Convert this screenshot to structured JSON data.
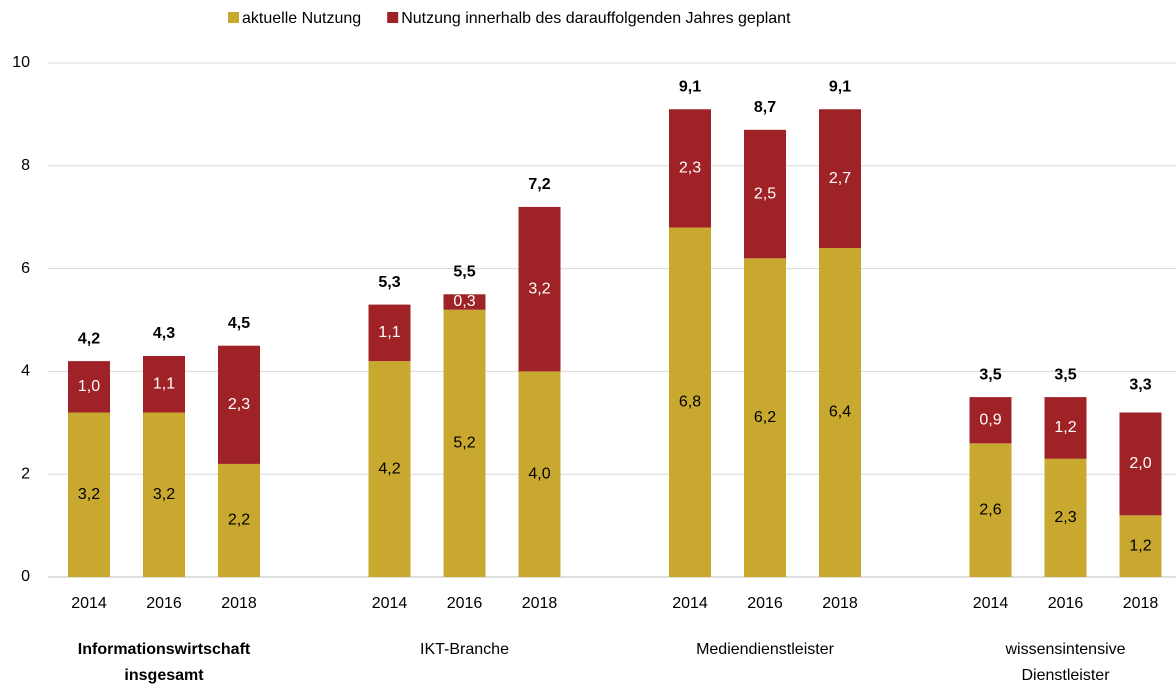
{
  "chart_data": {
    "type": "stacked_bar",
    "groups": [
      {
        "label": [
          "Informationswirtschaft",
          "insgesamt"
        ],
        "bold": true,
        "categories": [
          "2014",
          "2016",
          "2018"
        ]
      },
      {
        "label": [
          "IKT-Branche"
        ],
        "bold": false,
        "categories": [
          "2014",
          "2016",
          "2018"
        ]
      },
      {
        "label": [
          "Mediendienstleister"
        ],
        "bold": false,
        "categories": [
          "2014",
          "2016",
          "2018"
        ]
      },
      {
        "label": [
          "wissensintensive",
          "Dienstleister"
        ],
        "bold": false,
        "categories": [
          "2014",
          "2016",
          "2018"
        ]
      }
    ],
    "series": [
      {
        "name": "aktuelle Nutzung",
        "color": "#c9a82f",
        "label_color": "#000000",
        "values": [
          3.2,
          3.2,
          2.2,
          4.2,
          5.2,
          4.0,
          6.8,
          6.2,
          6.4,
          2.6,
          2.3,
          1.2
        ],
        "value_labels": [
          "3,2",
          "3,2",
          "2,2",
          "4,2",
          "5,2",
          "4,0",
          "6,8",
          "6,2",
          "6,4",
          "2,6",
          "2,3",
          "1,2"
        ]
      },
      {
        "name": "Nutzung innerhalb des darauffolgenden Jahres geplant",
        "color": "#9e2226",
        "label_color": "#ffffff",
        "values": [
          1.0,
          1.1,
          2.3,
          1.1,
          0.3,
          3.2,
          2.3,
          2.5,
          2.7,
          0.9,
          1.2,
          2.0
        ],
        "value_labels": [
          "1,0",
          "1,1",
          "2,3",
          "1,1",
          "0,3",
          "3,2",
          "2,3",
          "2,5",
          "2,7",
          "0,9",
          "1,2",
          "2,0"
        ]
      }
    ],
    "totals": [
      4.2,
      4.3,
      4.5,
      5.3,
      5.5,
      7.2,
      9.1,
      8.7,
      9.1,
      3.5,
      3.5,
      3.3
    ],
    "total_labels": [
      "4,2",
      "4,3",
      "4,5",
      "5,3",
      "5,5",
      "7,2",
      "9,1",
      "8,7",
      "9,1",
      "3,5",
      "3,5",
      "3,3"
    ],
    "ylim": [
      0,
      10
    ],
    "yticks": [
      0,
      2,
      4,
      6,
      8,
      10
    ],
    "grid": true
  }
}
